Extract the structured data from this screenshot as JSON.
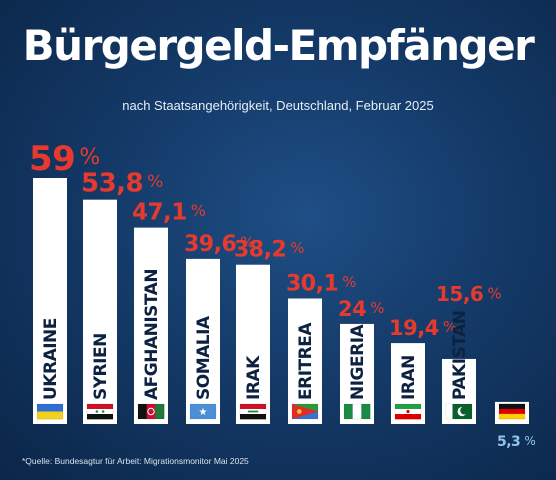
{
  "title": "Bürgergeld-Empfänger",
  "subtitle": "nach Staatsangehörigkeit, Deutschland, Februar 2025",
  "source": "*Quelle: Bundesagtur für Arbeit: Migrationsmonitor Mai 2025",
  "colors": {
    "background": "#143a68",
    "bar": "#ffffff",
    "value_label": "#e63a2e",
    "germany_label": "#8fc4ea",
    "country_text": "#0d2240"
  },
  "chart_data": {
    "type": "bar",
    "title": "Bürgergeld-Empfänger",
    "subtitle": "nach Staatsangehörigkeit, Deutschland, Februar 2025",
    "categories": [
      "UKRAINE",
      "SYRIEN",
      "AFGHANISTAN",
      "SOMALIA",
      "IRAK",
      "ERITREA",
      "NIGERIA",
      "IRAN",
      "PAKISTAN",
      ""
    ],
    "values": [
      59,
      53.8,
      47.1,
      39.6,
      38.2,
      30.1,
      24,
      19.4,
      15.6,
      5.3
    ],
    "value_labels": [
      "59",
      "53,8",
      "47,1",
      "39,6",
      "38,2",
      "30,1",
      "24",
      "19,4",
      "15,6",
      "5,3"
    ],
    "unit": "%",
    "flags": [
      "ukraine-flag",
      "syria-flag",
      "afghanistan-flag",
      "somalia-flag",
      "iraq-flag",
      "eritrea-flag",
      "nigeria-flag",
      "iran-flag",
      "pakistan-flag",
      "germany-flag"
    ],
    "ylim": [
      0,
      59
    ],
    "grid": false,
    "legend": "none"
  }
}
